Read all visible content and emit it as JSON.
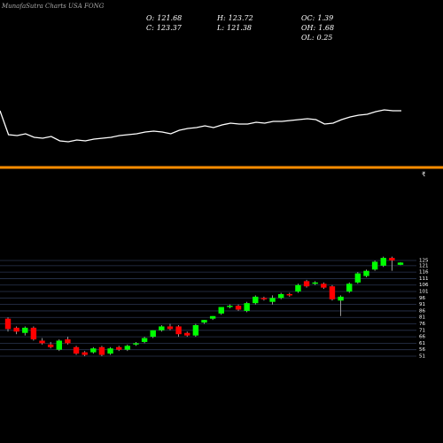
{
  "title": "MunafaSutra Charts USA FONG",
  "stats": [
    {
      "label": "O:",
      "value": 121.68
    },
    {
      "label": "C:",
      "value": 123.37
    },
    {
      "label": "H:",
      "value": 123.72
    },
    {
      "label": "L:",
      "value": 121.38
    },
    {
      "label": "OC:",
      "value": 1.39
    },
    {
      "label": "OH:",
      "value": 1.68
    },
    {
      "label": "OL:",
      "value": 0.25
    }
  ],
  "chart_data": [
    {
      "type": "line",
      "color": "#ffffff",
      "ylim": [
        0,
        200
      ],
      "values": [
        75,
        48,
        47,
        49,
        45,
        44,
        46,
        41,
        40,
        42,
        41,
        43,
        44,
        45,
        47,
        48,
        49,
        51,
        52,
        51,
        49,
        53,
        55,
        56,
        58,
        56,
        59,
        61,
        60,
        60,
        62,
        61,
        63,
        63,
        64,
        65,
        66,
        65,
        60,
        61,
        65,
        68,
        70,
        71,
        74,
        76,
        75,
        75
      ]
    },
    {
      "type": "candlestick",
      "up_color": "#00ff00",
      "down_color": "#ff0000",
      "grid": true,
      "ylim": [
        51,
        125
      ],
      "yticks": [
        125,
        121,
        116,
        111,
        106,
        101,
        96,
        91,
        86,
        81,
        76,
        71,
        66,
        61,
        56,
        51
      ],
      "open": [
        80,
        73,
        69,
        73,
        63,
        60,
        56,
        64,
        58,
        54,
        54,
        58,
        53,
        58,
        56,
        60,
        62,
        66,
        71,
        74,
        74,
        69,
        67,
        77,
        80,
        84,
        89,
        90,
        86,
        92,
        96,
        93,
        96,
        99,
        101,
        109,
        107,
        107,
        105,
        94,
        101,
        108,
        113,
        118,
        121,
        127,
        121.68
      ],
      "high": [
        81,
        74,
        74,
        74,
        65,
        62,
        64,
        66,
        59,
        55,
        58,
        59,
        58,
        59,
        60,
        62,
        66,
        71,
        75,
        76,
        75,
        70,
        76,
        79,
        82,
        89,
        91,
        91,
        93,
        98,
        97,
        98,
        100,
        100,
        107,
        110,
        109,
        108,
        106,
        98,
        108,
        116,
        118,
        125,
        128,
        128,
        123.72
      ],
      "low": [
        70,
        68,
        67,
        63,
        60,
        57,
        55,
        60,
        52,
        51,
        53,
        51,
        52,
        55,
        55,
        59,
        61,
        65,
        70,
        71,
        66,
        66,
        66,
        76,
        79,
        83,
        88,
        86,
        85,
        91,
        94,
        91,
        95,
        97,
        100,
        104,
        106,
        103,
        94,
        82,
        100,
        107,
        112,
        117,
        120,
        117,
        121.38
      ],
      "close": [
        72,
        70,
        73,
        64,
        61,
        58,
        63,
        61,
        53,
        52,
        57,
        52,
        57,
        56,
        59,
        61,
        65,
        71,
        74,
        72,
        68,
        67,
        75,
        79,
        82,
        89,
        90,
        87,
        92,
        97,
        95,
        96,
        99,
        98,
        106,
        105,
        108,
        104,
        95,
        97,
        107,
        115,
        117,
        124,
        127,
        125,
        123.37
      ]
    }
  ]
}
